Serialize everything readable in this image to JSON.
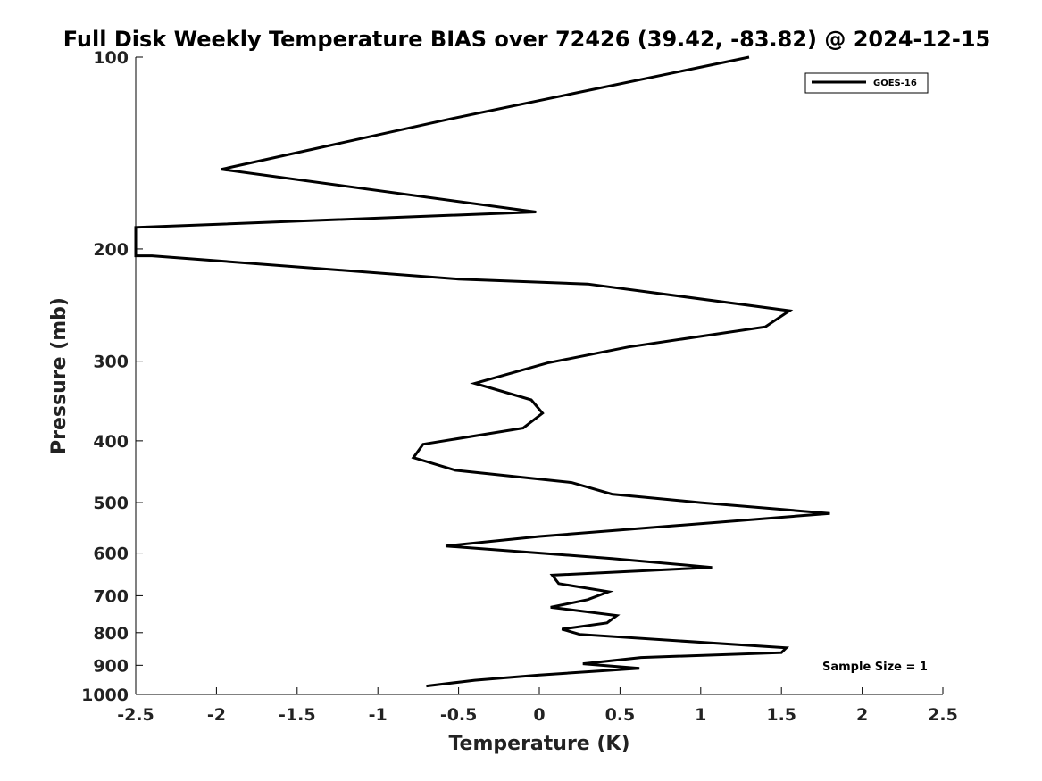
{
  "chart_data": {
    "type": "line",
    "title": "Full Disk Weekly Temperature BIAS over 72426 (39.42, -83.82) @ 2024-12-15",
    "xlabel": "Temperature (K)",
    "ylabel": "Pressure (mb)",
    "xlim": [
      -2.5,
      2.5
    ],
    "ylim": [
      100,
      1000
    ],
    "y_scale": "log",
    "y_reversed": true,
    "x_ticks": [
      "-2.5",
      "-2",
      "-1.5",
      "-1",
      "-0.5",
      "0",
      "0.5",
      "1",
      "1.5",
      "2",
      "2.5"
    ],
    "x_tick_values": [
      -2.5,
      -2,
      -1.5,
      -1,
      -0.5,
      0,
      0.5,
      1,
      1.5,
      2,
      2.5
    ],
    "y_ticks": [
      "100",
      "200",
      "300",
      "400",
      "500",
      "600",
      "700",
      "800",
      "900",
      "1000"
    ],
    "y_tick_values": [
      100,
      200,
      300,
      400,
      500,
      600,
      700,
      800,
      900,
      1000
    ],
    "grid": false,
    "legend_position": "top-right",
    "annotation": "Sample Size = 1",
    "series": [
      {
        "name": "GOES-16",
        "color": "#000000",
        "points": [
          {
            "x": 1.3,
            "y": 100
          },
          {
            "x": -0.55,
            "y": 125
          },
          {
            "x": -1.97,
            "y": 150
          },
          {
            "x": -0.02,
            "y": 175
          },
          {
            "x": -2.5,
            "y": 185
          },
          {
            "x": -2.5,
            "y": 205
          },
          {
            "x": -2.4,
            "y": 205
          },
          {
            "x": -0.5,
            "y": 223
          },
          {
            "x": 0.3,
            "y": 227
          },
          {
            "x": 1.55,
            "y": 250
          },
          {
            "x": 1.4,
            "y": 265
          },
          {
            "x": 0.55,
            "y": 285
          },
          {
            "x": 0.05,
            "y": 302
          },
          {
            "x": -0.4,
            "y": 325
          },
          {
            "x": -0.05,
            "y": 345
          },
          {
            "x": 0.02,
            "y": 362
          },
          {
            "x": -0.1,
            "y": 382
          },
          {
            "x": -0.72,
            "y": 405
          },
          {
            "x": -0.78,
            "y": 425
          },
          {
            "x": -0.52,
            "y": 445
          },
          {
            "x": 0.2,
            "y": 465
          },
          {
            "x": 0.45,
            "y": 485
          },
          {
            "x": 1.0,
            "y": 500
          },
          {
            "x": 1.8,
            "y": 520
          },
          {
            "x": 0.0,
            "y": 565
          },
          {
            "x": -0.58,
            "y": 585
          },
          {
            "x": 0.45,
            "y": 612
          },
          {
            "x": 1.07,
            "y": 632
          },
          {
            "x": 0.08,
            "y": 650
          },
          {
            "x": 0.12,
            "y": 670
          },
          {
            "x": 0.43,
            "y": 690
          },
          {
            "x": 0.3,
            "y": 710
          },
          {
            "x": 0.07,
            "y": 730
          },
          {
            "x": 0.48,
            "y": 752
          },
          {
            "x": 0.42,
            "y": 772
          },
          {
            "x": 0.14,
            "y": 790
          },
          {
            "x": 0.25,
            "y": 805
          },
          {
            "x": 1.53,
            "y": 845
          },
          {
            "x": 1.5,
            "y": 860
          },
          {
            "x": 0.63,
            "y": 875
          },
          {
            "x": 0.27,
            "y": 895
          },
          {
            "x": 0.62,
            "y": 910
          },
          {
            "x": 0.0,
            "y": 932
          },
          {
            "x": -0.4,
            "y": 950
          },
          {
            "x": -0.7,
            "y": 970
          }
        ]
      }
    ]
  }
}
